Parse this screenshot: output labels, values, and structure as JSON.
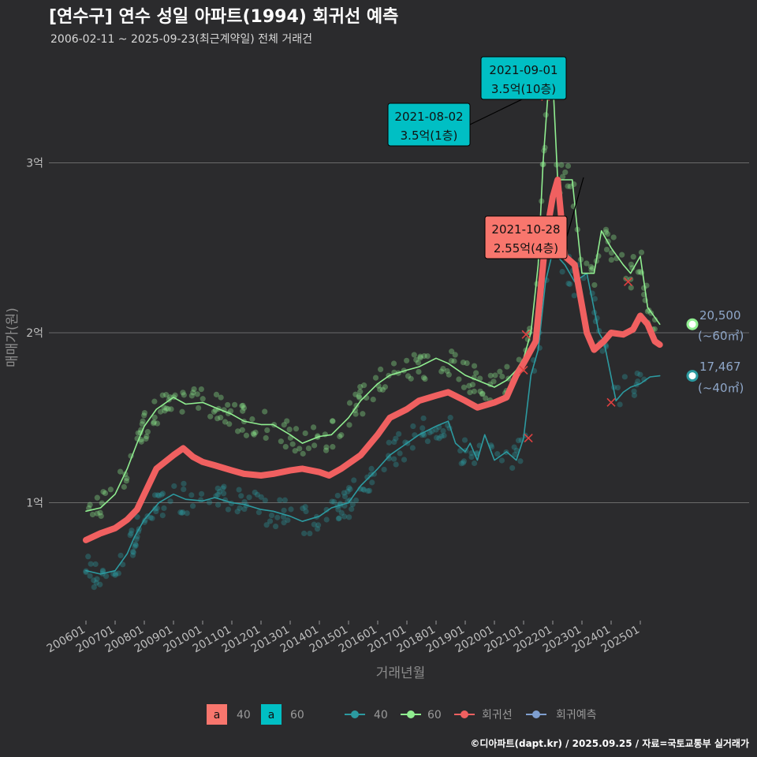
{
  "header": {
    "title": "[연수구] 연수 성일 아파트(1994) 회귀선 예측",
    "subtitle": "2006-02-11 ~ 2025-09-23(최근계약일) 전체 거래건"
  },
  "credit": "©디아파트(dapt.kr) / 2025.09.25 / 자료=국토교통부 실거래가",
  "colors": {
    "background": "#2b2b2d",
    "grid": "#6a6a6a",
    "area_40": "#f8766d",
    "area_60": "#00bfc4",
    "series_40": "#2c9aa0",
    "series_60": "#90ee90",
    "regression": "#f06060",
    "forecast": "#7f9fd0"
  },
  "legend": {
    "fill_items": [
      {
        "key": "a",
        "label": "40",
        "color": "#f8766d"
      },
      {
        "key": "a",
        "label": "60",
        "color": "#00bfc4"
      }
    ],
    "line_items": [
      {
        "label": "40",
        "color": "#2c9aa0"
      },
      {
        "label": "60",
        "color": "#90ee90"
      },
      {
        "label": "회귀선",
        "color": "#f06060"
      },
      {
        "label": "회귀예측",
        "color": "#7f9fd0"
      }
    ]
  },
  "chart_data": {
    "type": "line",
    "xlabel": "거래년월",
    "ylabel": "매매가(원)",
    "unit": "만원",
    "x_range": [
      "2006-01",
      "2025-12"
    ],
    "y_range": [
      3400,
      37000
    ],
    "x_ticks": [
      "200601",
      "200701",
      "200801",
      "200901",
      "201001",
      "201101",
      "201201",
      "201301",
      "201401",
      "201501",
      "201601",
      "201701",
      "201801",
      "201901",
      "202001",
      "202101",
      "202201",
      "202301",
      "202401",
      "202501"
    ],
    "y_ticks": [
      {
        "value": 10000,
        "label": "1억"
      },
      {
        "value": 20000,
        "label": "2억"
      },
      {
        "value": 30000,
        "label": "3억"
      }
    ],
    "grid": true,
    "legend_position": "bottom",
    "series": [
      {
        "name": "40",
        "color": "#2c9aa0",
        "points": [
          [
            "2006-01",
            6000
          ],
          [
            "2006-07",
            5800
          ],
          [
            "2007-01",
            6000
          ],
          [
            "2007-06",
            7000
          ],
          [
            "2007-09",
            8000
          ],
          [
            "2008-01",
            9000
          ],
          [
            "2008-04",
            9500
          ],
          [
            "2008-07",
            10000
          ],
          [
            "2009-01",
            10500
          ],
          [
            "2009-06",
            10200
          ],
          [
            "2010-01",
            10100
          ],
          [
            "2010-06",
            10300
          ],
          [
            "2011-01",
            10000
          ],
          [
            "2011-06",
            9900
          ],
          [
            "2012-01",
            9600
          ],
          [
            "2012-06",
            9500
          ],
          [
            "2013-01",
            9200
          ],
          [
            "2013-06",
            8900
          ],
          [
            "2014-01",
            9200
          ],
          [
            "2014-06",
            9700
          ],
          [
            "2015-01",
            10000
          ],
          [
            "2015-06",
            11000
          ],
          [
            "2016-01",
            12000
          ],
          [
            "2016-06",
            12800
          ],
          [
            "2017-01",
            13500
          ],
          [
            "2017-06",
            14000
          ],
          [
            "2018-01",
            14500
          ],
          [
            "2018-06",
            14800
          ],
          [
            "2018-09",
            13500
          ],
          [
            "2019-01",
            13000
          ],
          [
            "2019-03",
            13500
          ],
          [
            "2019-06",
            12500
          ],
          [
            "2019-09",
            14000
          ],
          [
            "2020-01",
            12500
          ],
          [
            "2020-06",
            13000
          ],
          [
            "2020-10",
            12500
          ],
          [
            "2021-01",
            13800
          ],
          [
            "2021-04",
            17500
          ],
          [
            "2021-07",
            19000
          ],
          [
            "2021-10",
            23000
          ],
          [
            "2022-01",
            24800
          ],
          [
            "2022-06",
            24000
          ],
          [
            "2022-10",
            23000
          ],
          [
            "2023-03",
            23500
          ],
          [
            "2023-08",
            20000
          ],
          [
            "2023-10",
            19500
          ],
          [
            "2024-03",
            16000
          ],
          [
            "2024-06",
            16500
          ],
          [
            "2024-09",
            16800
          ],
          [
            "2025-01",
            17000
          ],
          [
            "2025-05",
            17400
          ],
          [
            "2025-09",
            17467
          ]
        ]
      },
      {
        "name": "60",
        "color": "#90ee90",
        "points": [
          [
            "2006-01",
            9500
          ],
          [
            "2006-07",
            9700
          ],
          [
            "2007-01",
            10500
          ],
          [
            "2007-06",
            12000
          ],
          [
            "2007-10",
            13500
          ],
          [
            "2008-01",
            14500
          ],
          [
            "2008-06",
            15500
          ],
          [
            "2009-01",
            16200
          ],
          [
            "2009-06",
            15800
          ],
          [
            "2010-01",
            15900
          ],
          [
            "2010-06",
            15600
          ],
          [
            "2011-01",
            15200
          ],
          [
            "2011-06",
            14800
          ],
          [
            "2012-01",
            14600
          ],
          [
            "2012-06",
            14600
          ],
          [
            "2013-01",
            14000
          ],
          [
            "2013-06",
            13500
          ],
          [
            "2014-01",
            13900
          ],
          [
            "2014-06",
            14000
          ],
          [
            "2015-01",
            15000
          ],
          [
            "2015-06",
            16000
          ],
          [
            "2016-01",
            17000
          ],
          [
            "2016-06",
            17500
          ],
          [
            "2017-01",
            17800
          ],
          [
            "2017-06",
            18000
          ],
          [
            "2018-01",
            18500
          ],
          [
            "2018-06",
            18200
          ],
          [
            "2019-01",
            17500
          ],
          [
            "2019-06",
            17200
          ],
          [
            "2020-01",
            16800
          ],
          [
            "2020-06",
            17200
          ],
          [
            "2020-10",
            17800
          ],
          [
            "2021-01",
            18500
          ],
          [
            "2021-04",
            20000
          ],
          [
            "2021-07",
            24000
          ],
          [
            "2021-09",
            30000
          ],
          [
            "2021-11",
            34000
          ],
          [
            "2022-01",
            35000
          ],
          [
            "2022-03",
            29000
          ],
          [
            "2022-09",
            29000
          ],
          [
            "2023-01",
            23500
          ],
          [
            "2023-06",
            23500
          ],
          [
            "2023-09",
            26000
          ],
          [
            "2024-01",
            25000
          ],
          [
            "2024-06",
            24000
          ],
          [
            "2024-09",
            23500
          ],
          [
            "2025-01",
            24500
          ],
          [
            "2025-04",
            21500
          ],
          [
            "2025-09",
            20500
          ]
        ]
      },
      {
        "name": "회귀선",
        "color": "#f06060",
        "points": [
          [
            "2006-01",
            7800
          ],
          [
            "2006-07",
            8200
          ],
          [
            "2007-01",
            8500
          ],
          [
            "2007-06",
            9000
          ],
          [
            "2007-10",
            9600
          ],
          [
            "2008-01",
            10500
          ],
          [
            "2008-06",
            12000
          ],
          [
            "2009-01",
            12800
          ],
          [
            "2009-05",
            13200
          ],
          [
            "2009-09",
            12700
          ],
          [
            "2010-01",
            12400
          ],
          [
            "2010-06",
            12200
          ],
          [
            "2011-01",
            11900
          ],
          [
            "2011-06",
            11700
          ],
          [
            "2012-01",
            11600
          ],
          [
            "2012-06",
            11700
          ],
          [
            "2013-01",
            11900
          ],
          [
            "2013-06",
            12000
          ],
          [
            "2014-01",
            11800
          ],
          [
            "2014-05",
            11600
          ],
          [
            "2014-10",
            12000
          ],
          [
            "2015-06",
            12800
          ],
          [
            "2016-01",
            14000
          ],
          [
            "2016-06",
            15000
          ],
          [
            "2017-01",
            15500
          ],
          [
            "2017-06",
            16000
          ],
          [
            "2018-01",
            16300
          ],
          [
            "2018-06",
            16500
          ],
          [
            "2019-01",
            16000
          ],
          [
            "2019-06",
            15600
          ],
          [
            "2020-01",
            15900
          ],
          [
            "2020-06",
            16200
          ],
          [
            "2020-10",
            17500
          ],
          [
            "2021-01",
            18200
          ],
          [
            "2021-06",
            19500
          ],
          [
            "2021-10",
            25500
          ],
          [
            "2022-01",
            28000
          ],
          [
            "2022-03",
            29000
          ],
          [
            "2022-06",
            24500
          ],
          [
            "2022-10",
            24000
          ],
          [
            "2023-03",
            20000
          ],
          [
            "2023-06",
            19000
          ],
          [
            "2023-10",
            19500
          ],
          [
            "2024-01",
            20000
          ],
          [
            "2024-06",
            19900
          ],
          [
            "2024-10",
            20200
          ],
          [
            "2025-01",
            21000
          ],
          [
            "2025-04",
            20500
          ],
          [
            "2025-07",
            19500
          ],
          [
            "2025-09",
            19300
          ]
        ]
      }
    ],
    "forecast_points": [
      {
        "series": "60",
        "date": "2025-09",
        "value": 20500
      },
      {
        "series": "40",
        "date": "2025-09",
        "value": 17467
      }
    ],
    "end_labels": [
      {
        "value": "20,500",
        "area": "(~60㎡)"
      },
      {
        "value": "17,467",
        "area": "(~40㎡)"
      }
    ],
    "annotations": [
      {
        "date": "2021-09-01",
        "price_label": "3.5억(10층)",
        "value": 35000,
        "box": "#00bfc4"
      },
      {
        "date": "2021-08-02",
        "price_label": "3.5억(1층)",
        "value": 35000,
        "box": "#00bfc4"
      },
      {
        "date": "2021-10-28",
        "price_label": "2.55억(4층)",
        "value": 25500,
        "box": "#f8766d"
      }
    ]
  }
}
